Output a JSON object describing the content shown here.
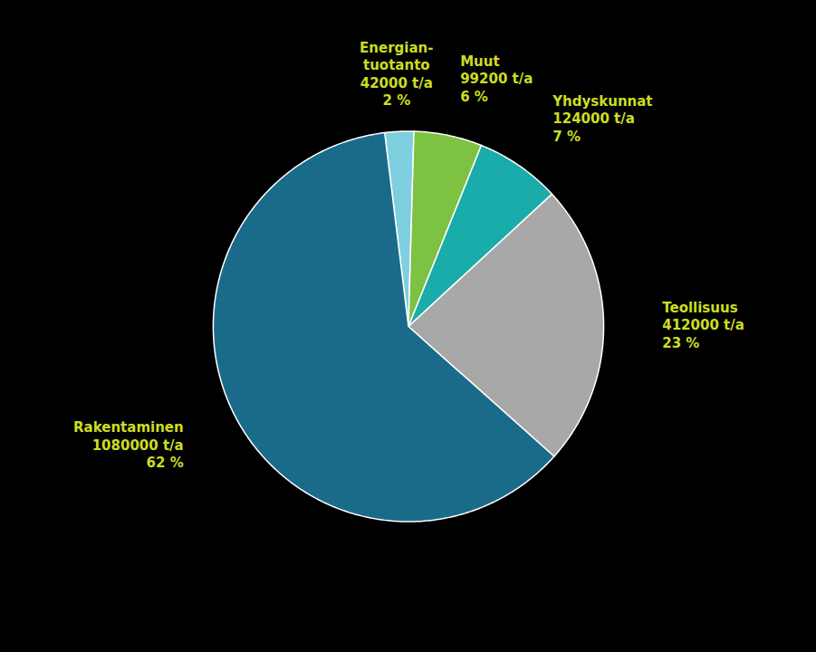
{
  "chart_data": {
    "type": "pie",
    "categories": [
      "Energian-\ntuotanto",
      "Muut",
      "Yhdyskunnat",
      "Teollisuus",
      "Rakentaminen"
    ],
    "values": [
      42000,
      99200,
      124000,
      412000,
      1080000
    ],
    "value_labels": [
      "42000 t/a",
      "99200 t/a",
      "124000 t/a",
      "412000 t/a",
      "1080000 t/a"
    ],
    "percentages": [
      2,
      6,
      7,
      23,
      62
    ],
    "percentage_labels": [
      "2 %",
      "6 %",
      "7 %",
      "23 %",
      "62 %"
    ],
    "colors": [
      "#7ecfe0",
      "#7dc242",
      "#1aabab",
      "#a8a8a8",
      "#1a6b8a"
    ],
    "data_labels": true
  }
}
